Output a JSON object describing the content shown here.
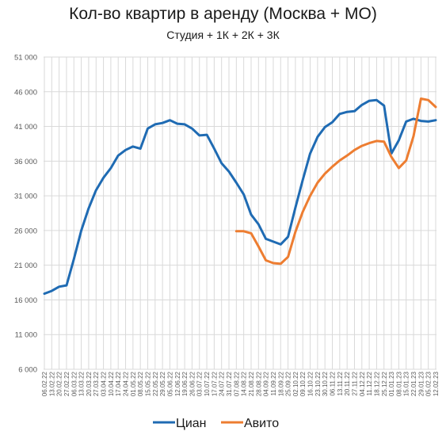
{
  "chart_data": {
    "type": "line",
    "title": "Кол-во квартир в аренду (Москва + МО)",
    "subtitle": "Студия + 1К + 2К + 3К",
    "xlabel": "",
    "ylabel": "",
    "ylim": [
      6000,
      51000
    ],
    "y_ticks": [
      "6 000",
      "11 000",
      "16 000",
      "21 000",
      "26 000",
      "31 000",
      "36 000",
      "41 000",
      "46 000",
      "51 000"
    ],
    "grid": true,
    "legend_position": "bottom",
    "x": [
      "06.02.22",
      "13.02.22",
      "20.02.22",
      "27.02.22",
      "06.03.22",
      "13.03.22",
      "20.03.22",
      "27.03.22",
      "03.04.22",
      "10.04.22",
      "17.04.22",
      "24.04.22",
      "01.05.22",
      "08.05.22",
      "15.05.22",
      "22.05.22",
      "29.05.22",
      "05.06.22",
      "12.06.22",
      "19.06.22",
      "26.06.22",
      "03.07.22",
      "10.07.22",
      "17.07.22",
      "24.07.22",
      "31.07.22",
      "07.08.22",
      "14.08.22",
      "21.08.22",
      "28.08.22",
      "04.09.22",
      "11.09.22",
      "18.09.22",
      "25.09.22",
      "02.10.22",
      "09.10.22",
      "16.10.22",
      "23.10.22",
      "30.10.22",
      "06.11.22",
      "13.11.22",
      "20.11.22",
      "27.11.22",
      "04.12.22",
      "11.12.22",
      "18.12.22",
      "25.12.22",
      "01.01.23",
      "08.01.23",
      "15.01.23",
      "22.01.23",
      "29.01.23",
      "05.02.23",
      "12.02.23"
    ],
    "series": [
      {
        "name": "Циан",
        "color": "#1f6bb3",
        "values": [
          16900,
          17300,
          17900,
          18100,
          21900,
          26000,
          29200,
          31800,
          33600,
          35000,
          36800,
          37600,
          38100,
          37800,
          40700,
          41300,
          41500,
          41900,
          41400,
          41300,
          40700,
          39700,
          39800,
          37800,
          35700,
          34500,
          32900,
          31200,
          28300,
          26900,
          24800,
          24400,
          24000,
          25100,
          29300,
          33300,
          37100,
          39500,
          40900,
          41600,
          42800,
          43100,
          43200,
          44100,
          44700,
          44800,
          44000,
          37100,
          39000,
          41700,
          42100,
          41800,
          41700,
          41900
        ]
      },
      {
        "name": "Авито",
        "color": "#ed7d31",
        "values": [
          null,
          null,
          null,
          null,
          null,
          null,
          null,
          null,
          null,
          null,
          null,
          null,
          null,
          null,
          null,
          null,
          null,
          null,
          null,
          null,
          null,
          null,
          null,
          null,
          null,
          null,
          25900,
          25900,
          25600,
          23700,
          21700,
          21300,
          21200,
          22200,
          25800,
          28700,
          31000,
          32900,
          34200,
          35200,
          36100,
          36800,
          37600,
          38200,
          38600,
          38900,
          38800,
          36600,
          35000,
          36100,
          39600,
          45000,
          44800,
          43800
        ]
      }
    ]
  }
}
